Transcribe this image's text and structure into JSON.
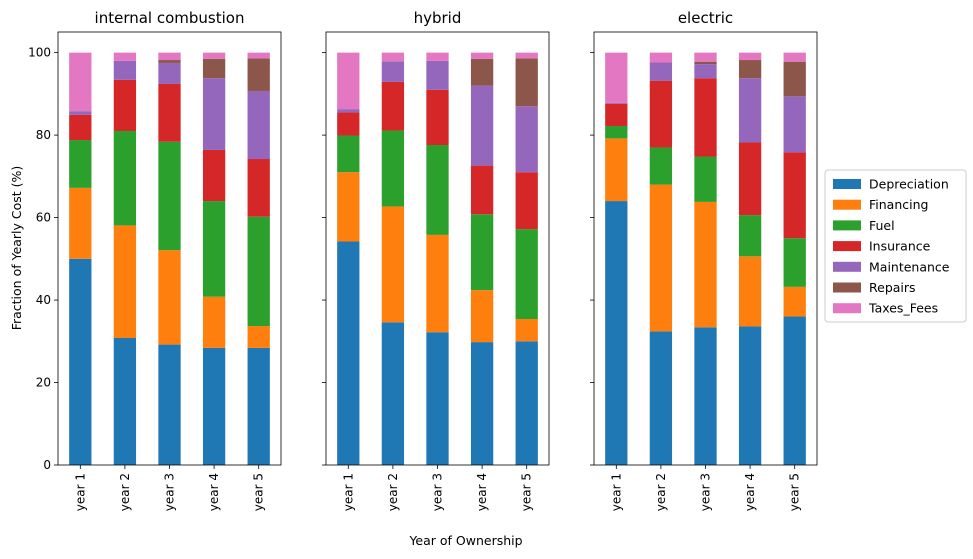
{
  "figure": {
    "ylabel": "Fraction of Yearly Cost (%)",
    "xlabel": "Year of Ownership"
  },
  "legend": {
    "entries": [
      {
        "name": "Depreciation",
        "color": "#1f77b4"
      },
      {
        "name": "Financing",
        "color": "#ff7f0e"
      },
      {
        "name": "Fuel",
        "color": "#2ca02c"
      },
      {
        "name": "Insurance",
        "color": "#d62728"
      },
      {
        "name": "Maintenance",
        "color": "#9467bd"
      },
      {
        "name": "Repairs",
        "color": "#8c564b"
      },
      {
        "name": "Taxes_Fees",
        "color": "#e377c2"
      }
    ],
    "placement": "right"
  },
  "chart_data": [
    {
      "type": "bar",
      "stacked": true,
      "title": "internal combustion",
      "categories": [
        "year 1",
        "year 2",
        "year 3",
        "year 4",
        "year 5"
      ],
      "ylim": [
        0,
        105
      ],
      "yticks": [
        0,
        20,
        40,
        60,
        80,
        100
      ],
      "series": [
        {
          "name": "Depreciation",
          "values": [
            50.0,
            30.8,
            29.2,
            28.4,
            28.4
          ]
        },
        {
          "name": "Financing",
          "values": [
            17.2,
            27.3,
            22.9,
            12.4,
            5.3
          ]
        },
        {
          "name": "Fuel",
          "values": [
            11.6,
            22.9,
            26.3,
            23.2,
            26.5
          ]
        },
        {
          "name": "Insurance",
          "values": [
            6.1,
            12.4,
            14.0,
            12.4,
            14.0
          ]
        },
        {
          "name": "Maintenance",
          "values": [
            0.9,
            4.6,
            5.1,
            17.4,
            16.5
          ]
        },
        {
          "name": "Repairs",
          "values": [
            0.0,
            0.0,
            0.7,
            4.7,
            7.9
          ]
        },
        {
          "name": "Taxes_Fees",
          "values": [
            14.2,
            2.0,
            1.8,
            1.5,
            1.4
          ]
        }
      ]
    },
    {
      "type": "bar",
      "stacked": true,
      "title": "hybrid",
      "categories": [
        "year 1",
        "year 2",
        "year 3",
        "year 4",
        "year 5"
      ],
      "ylim": [
        0,
        105
      ],
      "yticks": [
        0,
        20,
        40,
        60,
        80,
        100
      ],
      "series": [
        {
          "name": "Depreciation",
          "values": [
            54.2,
            34.6,
            32.2,
            29.8,
            30.0
          ]
        },
        {
          "name": "Financing",
          "values": [
            16.8,
            28.1,
            23.6,
            12.6,
            5.4
          ]
        },
        {
          "name": "Fuel",
          "values": [
            8.9,
            18.4,
            21.8,
            18.4,
            21.8
          ]
        },
        {
          "name": "Insurance",
          "values": [
            5.6,
            11.8,
            13.4,
            11.8,
            13.8
          ]
        },
        {
          "name": "Maintenance",
          "values": [
            0.8,
            5.0,
            7.0,
            19.4,
            16.0
          ]
        },
        {
          "name": "Repairs",
          "values": [
            0.0,
            0.0,
            0.0,
            6.5,
            11.6
          ]
        },
        {
          "name": "Taxes_Fees",
          "values": [
            13.7,
            2.1,
            2.0,
            1.5,
            1.4
          ]
        }
      ]
    },
    {
      "type": "bar",
      "stacked": true,
      "title": "electric",
      "categories": [
        "year 1",
        "year 2",
        "year 3",
        "year 4",
        "year 5"
      ],
      "ylim": [
        0,
        105
      ],
      "yticks": [
        0,
        20,
        40,
        60,
        80,
        100
      ],
      "series": [
        {
          "name": "Depreciation",
          "values": [
            64.0,
            32.4,
            33.4,
            33.6,
            36.0
          ]
        },
        {
          "name": "Financing",
          "values": [
            15.2,
            35.6,
            30.4,
            17.0,
            7.2
          ]
        },
        {
          "name": "Fuel",
          "values": [
            3.0,
            9.0,
            11.0,
            10.0,
            11.8
          ]
        },
        {
          "name": "Insurance",
          "values": [
            5.4,
            16.2,
            19.0,
            17.6,
            20.8
          ]
        },
        {
          "name": "Maintenance",
          "values": [
            0.2,
            4.4,
            3.4,
            15.6,
            13.6
          ]
        },
        {
          "name": "Repairs",
          "values": [
            0.0,
            0.0,
            0.6,
            4.4,
            8.4
          ]
        },
        {
          "name": "Taxes_Fees",
          "values": [
            12.2,
            2.4,
            2.2,
            1.8,
            2.2
          ]
        }
      ]
    }
  ]
}
